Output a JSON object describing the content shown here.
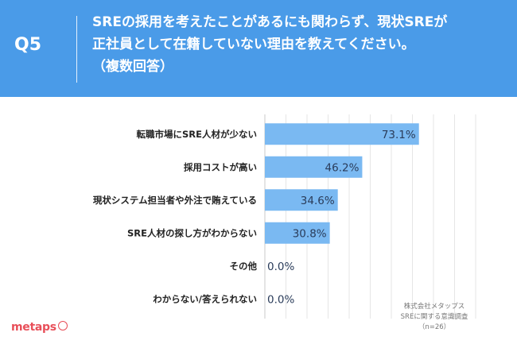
{
  "header": {
    "question_label": "Q5",
    "question_lines": [
      "SREの採用を考えたことがあるにも関わらず、現状SREが",
      "正社員として在籍していない理由を教えてください。",
      "（複数回答）"
    ]
  },
  "colors": {
    "header_bg": "#4a9be8",
    "bar": "#7ab9f2",
    "logo": "#e84f59"
  },
  "chart_data": {
    "type": "bar",
    "orientation": "horizontal",
    "title": "",
    "xlabel": "",
    "ylabel": "",
    "categories": [
      "転職市場にSRE人材が少ない",
      "採用コストが高い",
      "現状システム担当者や外注で賄えている",
      "SRE人材の探し方がわからない",
      "その他",
      "わからない/答えられない"
    ],
    "values": [
      73.1,
      46.2,
      34.6,
      30.8,
      0.0,
      0.0
    ],
    "value_labels": [
      "73.1%",
      "46.2%",
      "34.6%",
      "30.8%",
      "0.0%",
      "0.0%"
    ],
    "xlim": [
      0,
      100
    ],
    "grid": true,
    "legend": "none"
  },
  "source_note": {
    "lines": [
      "株式会社メタップス",
      "SREに関する意識調査",
      "（n=26）"
    ]
  },
  "logo": {
    "text": "metaps"
  }
}
